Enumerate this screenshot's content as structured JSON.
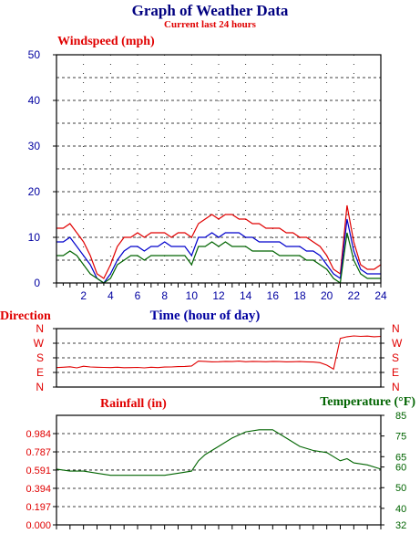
{
  "header": {
    "title": "Graph of Weather Data",
    "subtitle": "Current last 24 hours"
  },
  "colors": {
    "wind_red": "#e00000",
    "wind_blue": "#0000cc",
    "wind_green": "#006400",
    "dir_red": "#e00000",
    "axis_blue": "#0000a0",
    "temp_green": "#006400"
  },
  "chart_data": [
    {
      "type": "line",
      "id": "windspeed",
      "ylabel": "Windspeed (mph)",
      "xlabel": "Time (hour of day)",
      "xlim": [
        0,
        24
      ],
      "ylim": [
        0,
        50
      ],
      "yticks": [
        "0",
        "10",
        "20",
        "30",
        "40",
        "50"
      ],
      "xticks": [
        "2",
        "4",
        "6",
        "8",
        "10",
        "12",
        "14",
        "16",
        "18",
        "20",
        "22",
        "24"
      ],
      "grid": true,
      "x": [
        0.0,
        0.5,
        1.0,
        1.5,
        2.0,
        2.5,
        3.0,
        3.5,
        4.0,
        4.5,
        5.0,
        5.5,
        6.0,
        6.5,
        7.0,
        7.5,
        8.0,
        8.5,
        9.0,
        9.5,
        10.0,
        10.5,
        11.0,
        11.5,
        12.0,
        12.5,
        13.0,
        13.5,
        14.0,
        14.5,
        15.0,
        15.5,
        16.0,
        16.5,
        17.0,
        17.5,
        18.0,
        18.5,
        19.0,
        19.5,
        20.0,
        20.5,
        21.0,
        21.5,
        22.0,
        22.5,
        23.0,
        23.5,
        24.0
      ],
      "series": [
        {
          "values": [
            12,
            12,
            13,
            11,
            9,
            6,
            2,
            1,
            4,
            8,
            10,
            10,
            11,
            10,
            11,
            11,
            11,
            10,
            11,
            11,
            10,
            13,
            14,
            15,
            14,
            15,
            15,
            14,
            14,
            13,
            13,
            12,
            12,
            12,
            11,
            11,
            10,
            10,
            9,
            8,
            6,
            3,
            2,
            17,
            9,
            4,
            3,
            3,
            4
          ]
        },
        {
          "values": [
            9,
            9,
            10,
            8,
            6,
            4,
            1,
            0,
            2,
            5,
            7,
            8,
            8,
            7,
            8,
            8,
            9,
            8,
            8,
            8,
            6,
            10,
            10,
            11,
            10,
            11,
            11,
            11,
            10,
            10,
            9,
            9,
            9,
            9,
            8,
            8,
            8,
            7,
            7,
            6,
            4,
            2,
            1,
            14,
            7,
            3,
            2,
            2,
            2
          ]
        },
        {
          "values": [
            6,
            6,
            7,
            6,
            4,
            2,
            1,
            0,
            1,
            4,
            5,
            6,
            6,
            5,
            6,
            6,
            6,
            6,
            6,
            6,
            4,
            8,
            8,
            9,
            8,
            9,
            8,
            8,
            8,
            7,
            7,
            7,
            7,
            6,
            6,
            6,
            6,
            5,
            5,
            4,
            3,
            1,
            0,
            11,
            5,
            2,
            1,
            1,
            1
          ]
        }
      ]
    },
    {
      "type": "line",
      "id": "direction",
      "ylabel": "Direction",
      "yticks": [
        "N",
        "W",
        "S",
        "E",
        "N"
      ],
      "ylim": [
        0,
        360
      ],
      "x": [
        0.0,
        0.5,
        1.0,
        1.5,
        2.0,
        2.5,
        3.0,
        3.5,
        4.0,
        4.5,
        5.0,
        5.5,
        6.0,
        6.5,
        7.0,
        7.5,
        8.0,
        8.5,
        9.0,
        9.5,
        10.0,
        10.5,
        11.0,
        11.5,
        12.0,
        12.5,
        13.0,
        13.5,
        14.0,
        14.5,
        15.0,
        15.5,
        16.0,
        16.5,
        17.0,
        17.5,
        18.0,
        18.5,
        19.0,
        19.5,
        20.0,
        20.5,
        21.0,
        21.5,
        22.0,
        22.5,
        23.0,
        23.5,
        24.0
      ],
      "series": [
        {
          "values": [
            120,
            122,
            125,
            118,
            128,
            124,
            122,
            121,
            120,
            122,
            119,
            120,
            121,
            118,
            122,
            120,
            123,
            124,
            126,
            127,
            130,
            160,
            158,
            155,
            156,
            158,
            157,
            160,
            156,
            158,
            157,
            156,
            158,
            157,
            155,
            156,
            157,
            155,
            154,
            150,
            135,
            110,
            300,
            310,
            315,
            312,
            314,
            310,
            312
          ]
        }
      ]
    },
    {
      "type": "line",
      "id": "rainfall-temperature",
      "left_label": "Rainfall (in)",
      "right_label": "Temperature (°F)",
      "left_ylim": [
        0,
        1.181
      ],
      "left_yticks": [
        "0.000",
        "0.197",
        "0.394",
        "0.591",
        "0.787",
        "0.984"
      ],
      "right_ylim": [
        32,
        85
      ],
      "right_yticks": [
        "32",
        "40",
        "50",
        "60",
        "65",
        "75",
        "85"
      ],
      "x": [
        0.0,
        1.0,
        2.0,
        3.0,
        4.0,
        5.0,
        6.0,
        7.0,
        8.0,
        9.0,
        10.0,
        10.5,
        11.0,
        12.0,
        13.0,
        14.0,
        15.0,
        16.0,
        17.0,
        18.0,
        19.0,
        20.0,
        21.0,
        21.5,
        22.0,
        23.0,
        24.0
      ],
      "series": [
        {
          "name": "Temperature (°F)",
          "axis": "right",
          "values": [
            59,
            58,
            58,
            57,
            56,
            56,
            56,
            56,
            56,
            57,
            58,
            63,
            66,
            70,
            74,
            77,
            78,
            78,
            74,
            70,
            68,
            67,
            63,
            64,
            62,
            61,
            59
          ]
        }
      ]
    }
  ]
}
